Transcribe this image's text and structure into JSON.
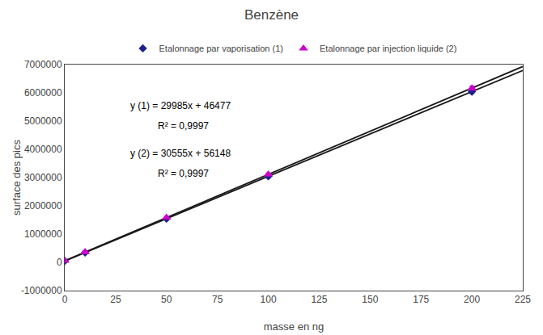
{
  "chart_data": {
    "type": "scatter",
    "title": "Benzène",
    "x_label": "masse en ng",
    "y_label": "surface des pics",
    "xlim": [
      0,
      225
    ],
    "ylim": [
      -1000000,
      7000000
    ],
    "xticks": [
      0,
      25,
      50,
      75,
      100,
      125,
      150,
      175,
      200,
      225
    ],
    "yticks": [
      -1000000,
      0,
      1000000,
      2000000,
      3000000,
      4000000,
      5000000,
      6000000,
      7000000
    ],
    "grid": false,
    "legend": "upper center",
    "series": [
      {
        "type": "line",
        "line_style": "solid",
        "color": "#1a1a1a",
        "x": [
          0,
          225
        ],
        "values": [
          46477,
          6793102
        ]
      },
      {
        "type": "line",
        "line_style": "solid",
        "color": "#1a1a1a",
        "x": [
          0,
          225
        ],
        "values": [
          56148,
          6931023
        ]
      },
      {
        "type": "scatter",
        "name": "Etalonnage par vaporisation (1)",
        "color": "#1f1f8f",
        "marker": "diamond",
        "x": [
          0,
          10,
          50,
          100,
          200
        ],
        "values": [
          46477,
          346327,
          1545727,
          3045177,
          6043477
        ],
        "errors": [
          50000,
          50000,
          50000,
          50000,
          72521.724
        ]
      },
      {
        "type": "scatter",
        "name": "Etalonnage par injection liquide (2)",
        "color": "#cc00cc",
        "marker": "triangle-up",
        "x": [
          0,
          10,
          50,
          100,
          200
        ],
        "values": [
          56148,
          361698,
          1583898,
          3111648,
          6167148
        ],
        "errors": [
          50000,
          50000,
          50000,
          50000,
          74005.776
        ]
      }
    ],
    "annotations": [
      "y (1) = 29985x + 46477",
      "R² = 0,9997",
      "y (2) = 30555x + 56148",
      "R² = 0,9997"
    ]
  }
}
